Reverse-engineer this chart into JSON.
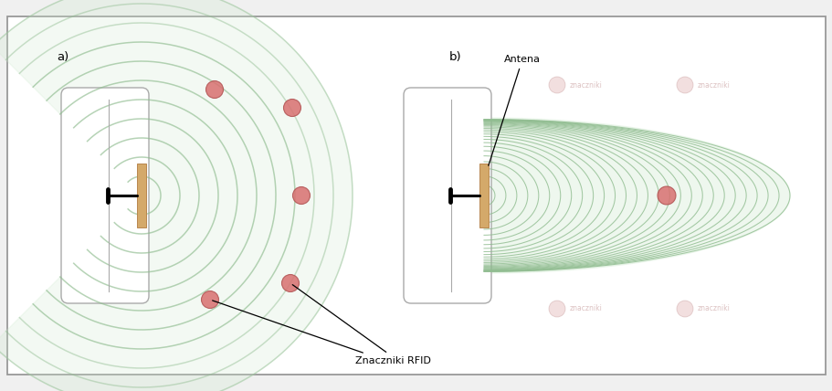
{
  "bg_color": "#f0f0f0",
  "panel_bg": "#ffffff",
  "wave_color_fill": "#d0ead0",
  "wave_color_edge": "#8fbc8f",
  "wave_color_light": "#c8e0c8",
  "antenna_color": "#d4a96a",
  "antenna_edge": "#b8864e",
  "tag_color": "#d87070",
  "tag_edge": "#b05050",
  "ghost_tag_color": "#e0b0b0",
  "ghost_tag_edge": "#c09090",
  "label_a": "a)",
  "label_b": "b)",
  "label_antenna": "Antena",
  "label_tags": "Znaczniki RFID",
  "ghost_label": "znaczniki"
}
